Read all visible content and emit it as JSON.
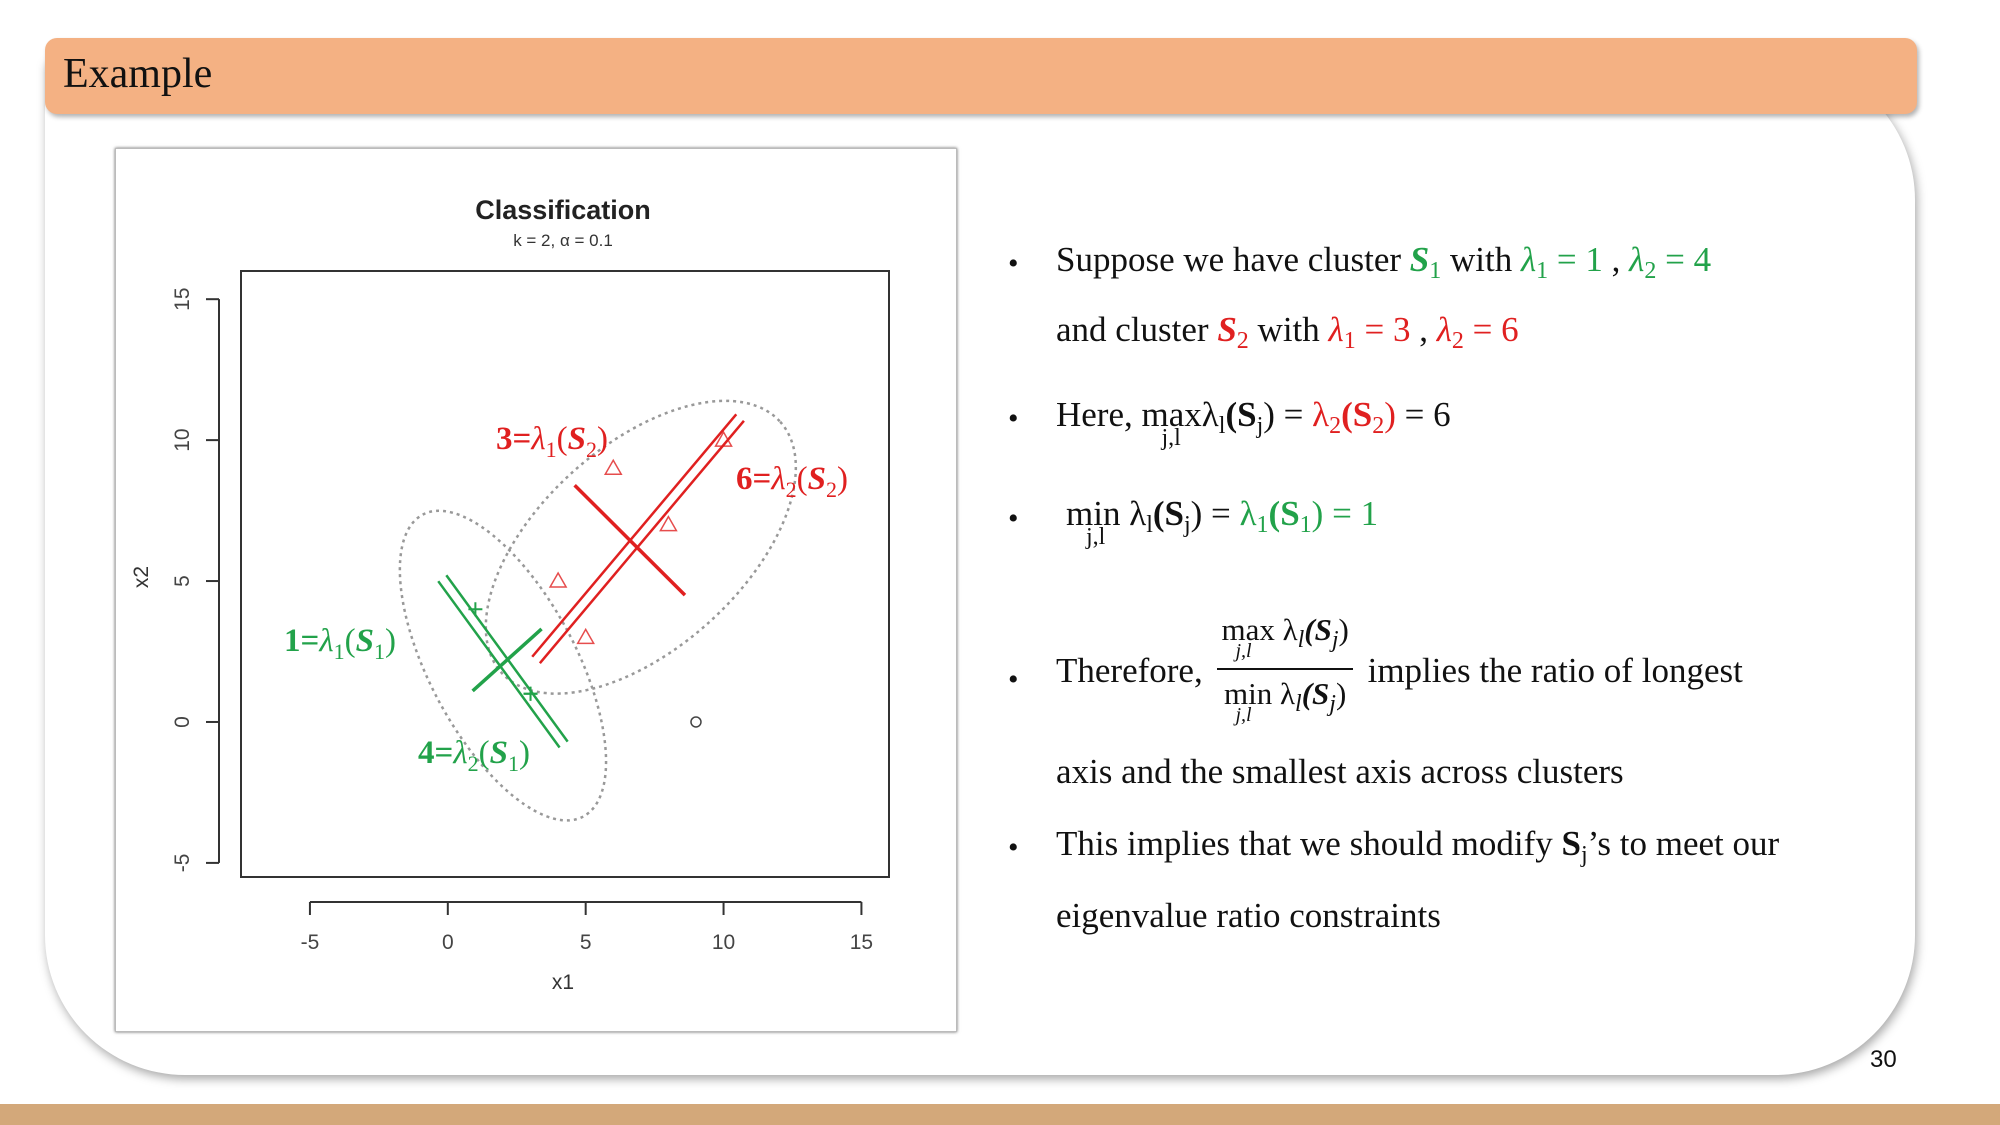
{
  "header": {
    "title": "Example"
  },
  "page_number": "30",
  "figure": {
    "chart_data": {
      "type": "scatter",
      "title": "Classification",
      "subtitle": "k = 2, α = 0.1",
      "xlabel": "x1",
      "ylabel": "x2",
      "xticks": [
        "-5",
        "0",
        "5",
        "10",
        "15"
      ],
      "yticks": [
        "-5",
        "0",
        "5",
        "10",
        "15"
      ],
      "xlim": [
        -7.5,
        16
      ],
      "ylim": [
        -5.5,
        16
      ],
      "grid": false,
      "series": [
        {
          "marker": "+",
          "color": "#22a24a",
          "x": [
            1.0,
            3.0,
            3.0
          ],
          "y": [
            4.0,
            1.0,
            1.0
          ]
        },
        {
          "marker": "triangle",
          "color": "#e02020",
          "x": [
            6.0,
            8.0,
            4.0,
            5.0,
            10.0
          ],
          "y": [
            9.0,
            7.0,
            5.0,
            3.0,
            10.0
          ]
        },
        {
          "marker": "circle",
          "color": "#444444",
          "x": [
            9.0
          ],
          "y": [
            0.0
          ]
        }
      ],
      "annotations": [
        {
          "text": "3=λ1(S2)",
          "color": "#e02020"
        },
        {
          "text": "6=λ2(S2)",
          "color": "#e02020"
        },
        {
          "text": "1=λ1(S1)",
          "color": "#22a24a"
        },
        {
          "text": "4=λ2(S1)",
          "color": "#22a24a"
        }
      ]
    }
  },
  "labels": {
    "a1_main": "3=",
    "a1_sym": "λ",
    "a1_sub": "1",
    "a1_open": "(",
    "a1_S": "S",
    "a1_sub2": "2",
    "a1_close": ")",
    "a2_main": "6=",
    "a2_sym": "λ",
    "a2_sub": "2",
    "a2_open": "(",
    "a2_S": "S",
    "a2_sub2": "2",
    "a2_close": ")",
    "a3_main": "1=",
    "a3_sym": "λ",
    "a3_sub": "1",
    "a3_open": "(",
    "a3_S": "S",
    "a3_sub2": "1",
    "a3_close": ")",
    "a4_main": "4=",
    "a4_sym": "λ",
    "a4_sub": "2",
    "a4_open": "(",
    "a4_S": "S",
    "a4_sub2": "1",
    "a4_close": ")"
  },
  "bullets": {
    "b1": {
      "t1": "Suppose we have cluster ",
      "s1": "S",
      "s1sub": "1",
      "t2": " with ",
      "l1": "λ",
      "l1sub": "1",
      "eq1": " = 1 ",
      "comma": ", ",
      "l2": "λ",
      "l2sub": "2",
      "eq2": " = 4",
      "t3": "and cluster ",
      "s2": "S",
      "s2sub": "2",
      "t4": " with ",
      "l3": "λ",
      "l3sub": "1",
      "eq3": " = 3 ",
      "comma2": ", ",
      "l4": "λ",
      "l4sub": "2",
      "eq4": " = 6"
    },
    "b2": {
      "t1": "Here, ",
      "max": "max",
      "under": "j,l",
      "lam": "λ",
      "lsub": "l",
      "paren": "(S",
      "jsub": "j",
      "close": ") = ",
      "rhs": "λ",
      "rsub": "2",
      "rS": "(S",
      "rsub2": "2",
      "rclose": ")",
      "eq": " = 6"
    },
    "b3": {
      "min": "min",
      "under": "j,l",
      "lam": "λ",
      "lsub": "l",
      "paren": "(S",
      "jsub": "j",
      "close": ") = ",
      "rhs": "λ",
      "rsub": "1",
      "rS": "(S",
      "rsub2": "1",
      "rclose": ") = 1"
    },
    "b4": {
      "t1": "Therefore, ",
      "num": "max λ",
      "num_sub": "l",
      "num_rest": "(S",
      "num_jsub": "j",
      "num_close": ")",
      "num_under": "j,l",
      "den": "min λ",
      "den_sub": "l",
      "den_rest": "(S",
      "den_jsub": "j",
      "den_close": ")",
      "den_under": "j,l",
      "t2": " implies the ratio of longest",
      "t3": "axis and the smallest axis across clusters"
    },
    "b5": {
      "t1": "This implies that we should modify ",
      "S": "S",
      "jsub": "j",
      "t2": "’s to meet our",
      "t3": "eigenvalue ratio constraints"
    }
  }
}
